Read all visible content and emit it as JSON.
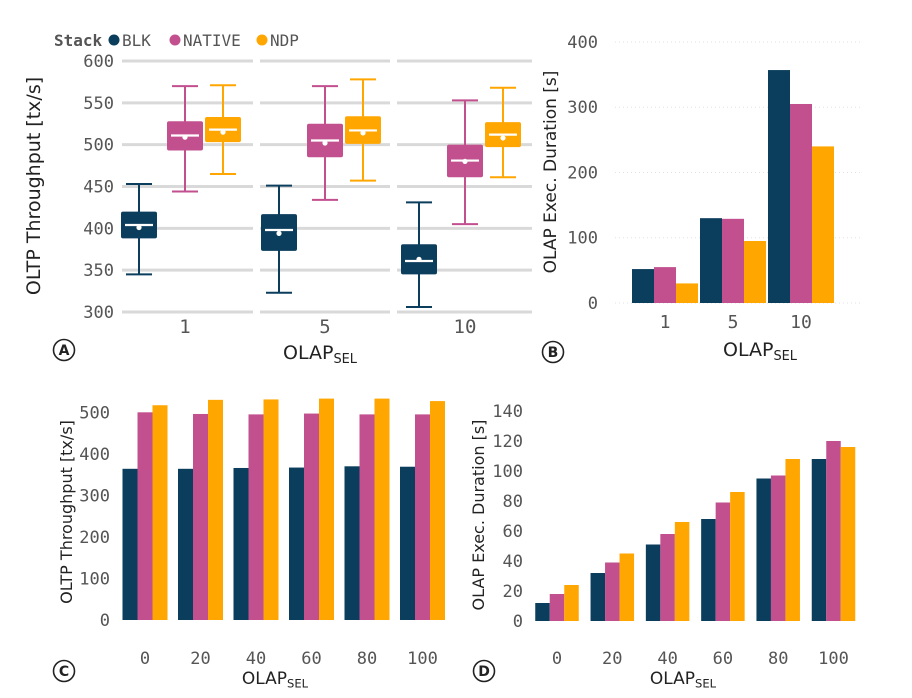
{
  "colors": {
    "BLK": "#0b3d5c",
    "NATIVE": "#c2508f",
    "NDP": "#ffa600",
    "grid": "#d9d9d9",
    "text": "#444444"
  },
  "legend": {
    "title": "Stack",
    "items": [
      "BLK",
      "NATIVE",
      "NDP"
    ]
  },
  "chart_data": [
    {
      "panel": "A",
      "type": "box",
      "ylabel": "OLTP Throughput [tx/s]",
      "xlabel": "OLAP",
      "xlabel_sub": "SEL",
      "ylim": [
        300,
        600
      ],
      "yticks": [
        "300",
        "350",
        "400",
        "450",
        "500",
        "550",
        "600"
      ],
      "categories": [
        "1",
        "5",
        "10"
      ],
      "series": [
        {
          "name": "BLK",
          "boxes": [
            {
              "min": 345,
              "q1": 388,
              "median": 404,
              "q3": 420,
              "max": 453,
              "mean": 401
            },
            {
              "min": 323,
              "q1": 373,
              "median": 398,
              "q3": 417,
              "max": 451,
              "mean": 394
            },
            {
              "min": 306,
              "q1": 345,
              "median": 361,
              "q3": 381,
              "max": 431,
              "mean": 363
            }
          ]
        },
        {
          "name": "NATIVE",
          "boxes": [
            {
              "min": 444,
              "q1": 493,
              "median": 511,
              "q3": 528,
              "max": 570,
              "mean": 509
            },
            {
              "min": 434,
              "q1": 485,
              "median": 505,
              "q3": 525,
              "max": 570,
              "mean": 502
            },
            {
              "min": 405,
              "q1": 461,
              "median": 481,
              "q3": 500,
              "max": 553,
              "mean": 480
            }
          ]
        },
        {
          "name": "NDP",
          "boxes": [
            {
              "min": 465,
              "q1": 503,
              "median": 518,
              "q3": 533,
              "max": 571,
              "mean": 515
            },
            {
              "min": 457,
              "q1": 501,
              "median": 517,
              "q3": 534,
              "max": 578,
              "mean": 514
            },
            {
              "min": 461,
              "q1": 497,
              "median": 512,
              "q3": 527,
              "max": 568,
              "mean": 508
            }
          ]
        }
      ]
    },
    {
      "panel": "B",
      "type": "bar",
      "ylabel": "OLAP Exec. Duration [s]",
      "xlabel": "OLAP",
      "xlabel_sub": "SEL",
      "ylim": [
        0,
        400
      ],
      "yticks": [
        "0",
        "100",
        "200",
        "300",
        "400"
      ],
      "categories": [
        "1",
        "5",
        "10"
      ],
      "series": [
        {
          "name": "BLK",
          "values": [
            52,
            130,
            357
          ]
        },
        {
          "name": "NATIVE",
          "values": [
            55,
            129,
            305
          ]
        },
        {
          "name": "NDP",
          "values": [
            30,
            95,
            240
          ]
        }
      ]
    },
    {
      "panel": "C",
      "type": "bar",
      "ylabel": "OLTP Throughput [tx/s]",
      "xlabel": "OLAP",
      "xlabel_sub": "SEL",
      "ylim": [
        0,
        520
      ],
      "yticks": [
        "0",
        "100",
        "200",
        "300",
        "400",
        "500"
      ],
      "categories": [
        "0",
        "20",
        "40",
        "60",
        "80",
        "100"
      ],
      "series": [
        {
          "name": "BLK",
          "values": [
            364,
            364,
            366,
            367,
            370,
            369
          ]
        },
        {
          "name": "NATIVE",
          "values": [
            500,
            496,
            495,
            497,
            495,
            495
          ]
        },
        {
          "name": "NDP",
          "values": [
            517,
            530,
            531,
            533,
            533,
            527
          ]
        }
      ]
    },
    {
      "panel": "D",
      "type": "bar",
      "ylabel": "OLAP Exec. Duration [s]",
      "xlabel": "OLAP",
      "xlabel_sub": "SEL",
      "ylim": [
        0,
        140
      ],
      "yticks": [
        "0",
        "20",
        "40",
        "60",
        "80",
        "100",
        "120",
        "140"
      ],
      "categories": [
        "0",
        "20",
        "40",
        "60",
        "80",
        "100"
      ],
      "series": [
        {
          "name": "BLK",
          "values": [
            12,
            32,
            51,
            68,
            95,
            108
          ]
        },
        {
          "name": "NATIVE",
          "values": [
            18,
            39,
            58,
            79,
            97,
            120
          ]
        },
        {
          "name": "NDP",
          "values": [
            24,
            45,
            66,
            86,
            108,
            116
          ]
        }
      ]
    }
  ]
}
